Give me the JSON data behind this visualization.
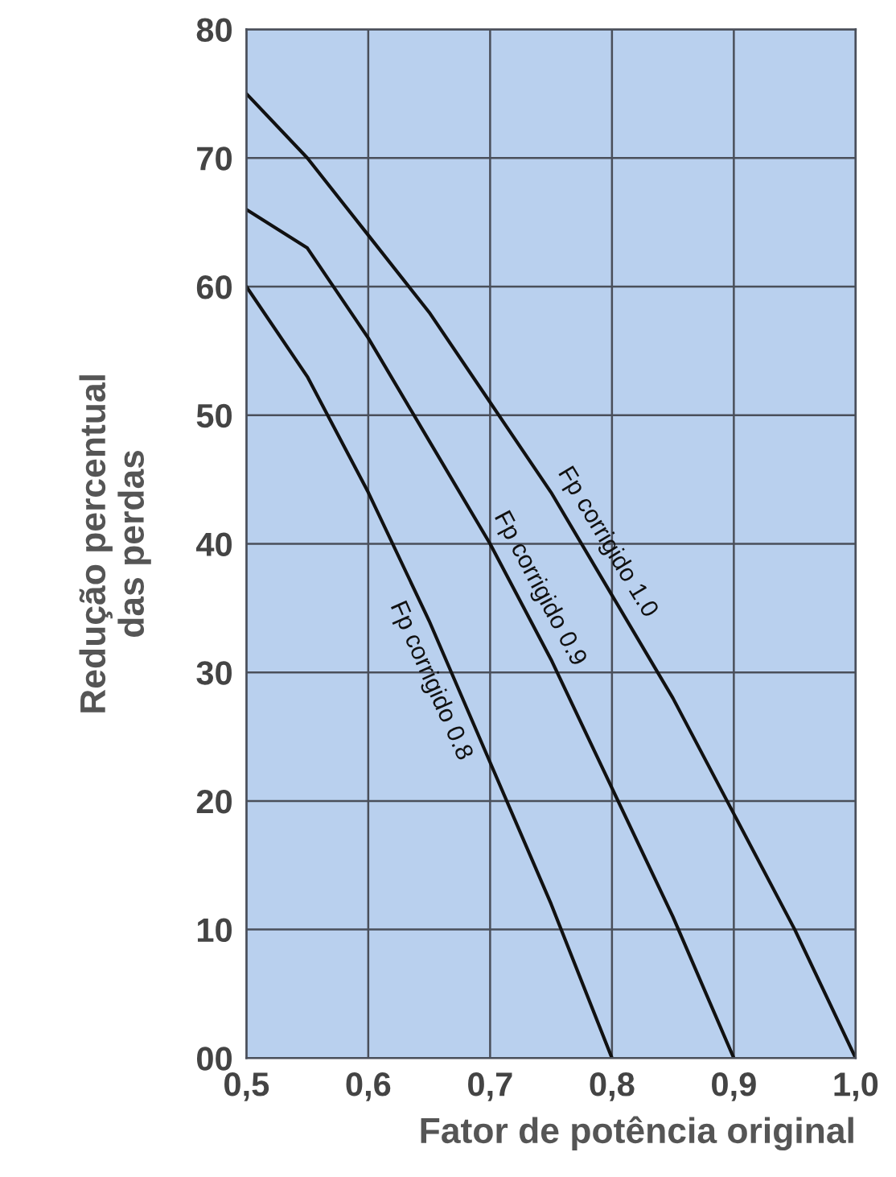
{
  "chart_data": {
    "type": "line",
    "xlabel": "Fator de potência original",
    "ylabel": "Redução percentual\ndas perdas",
    "xlim": [
      0.5,
      1.0
    ],
    "ylim": [
      0,
      80
    ],
    "xticks": [
      {
        "value": 0.5,
        "label": "0,5"
      },
      {
        "value": 0.6,
        "label": "0,6"
      },
      {
        "value": 0.7,
        "label": "0,7"
      },
      {
        "value": 0.8,
        "label": "0,8"
      },
      {
        "value": 0.9,
        "label": "0,9"
      },
      {
        "value": 1.0,
        "label": "1,0"
      }
    ],
    "yticks": [
      {
        "value": 0,
        "label": "00"
      },
      10,
      20,
      30,
      40,
      50,
      60,
      70,
      80
    ],
    "grid": true,
    "legend": false,
    "marker": "none",
    "line_style": "solid",
    "series": [
      {
        "name": "Fp corrigido 1.0",
        "color": "#111111",
        "x": [
          0.5,
          0.55,
          0.6,
          0.65,
          0.7,
          0.75,
          0.8,
          0.85,
          0.9,
          0.95,
          1.0
        ],
        "values": [
          75,
          70,
          64,
          58,
          51,
          44,
          36,
          28,
          19,
          10,
          0
        ]
      },
      {
        "name": "Fp corrigido 0.9",
        "color": "#111111",
        "x": [
          0.5,
          0.55,
          0.6,
          0.65,
          0.7,
          0.75,
          0.8,
          0.85,
          0.9
        ],
        "values": [
          66,
          63,
          56,
          48,
          40,
          31,
          21,
          11,
          0
        ]
      },
      {
        "name": "Fp corrigido 0.8",
        "color": "#111111",
        "x": [
          0.5,
          0.55,
          0.6,
          0.65,
          0.7,
          0.75,
          0.8
        ],
        "values": [
          60,
          53,
          44,
          34,
          23,
          12,
          0
        ]
      }
    ]
  }
}
